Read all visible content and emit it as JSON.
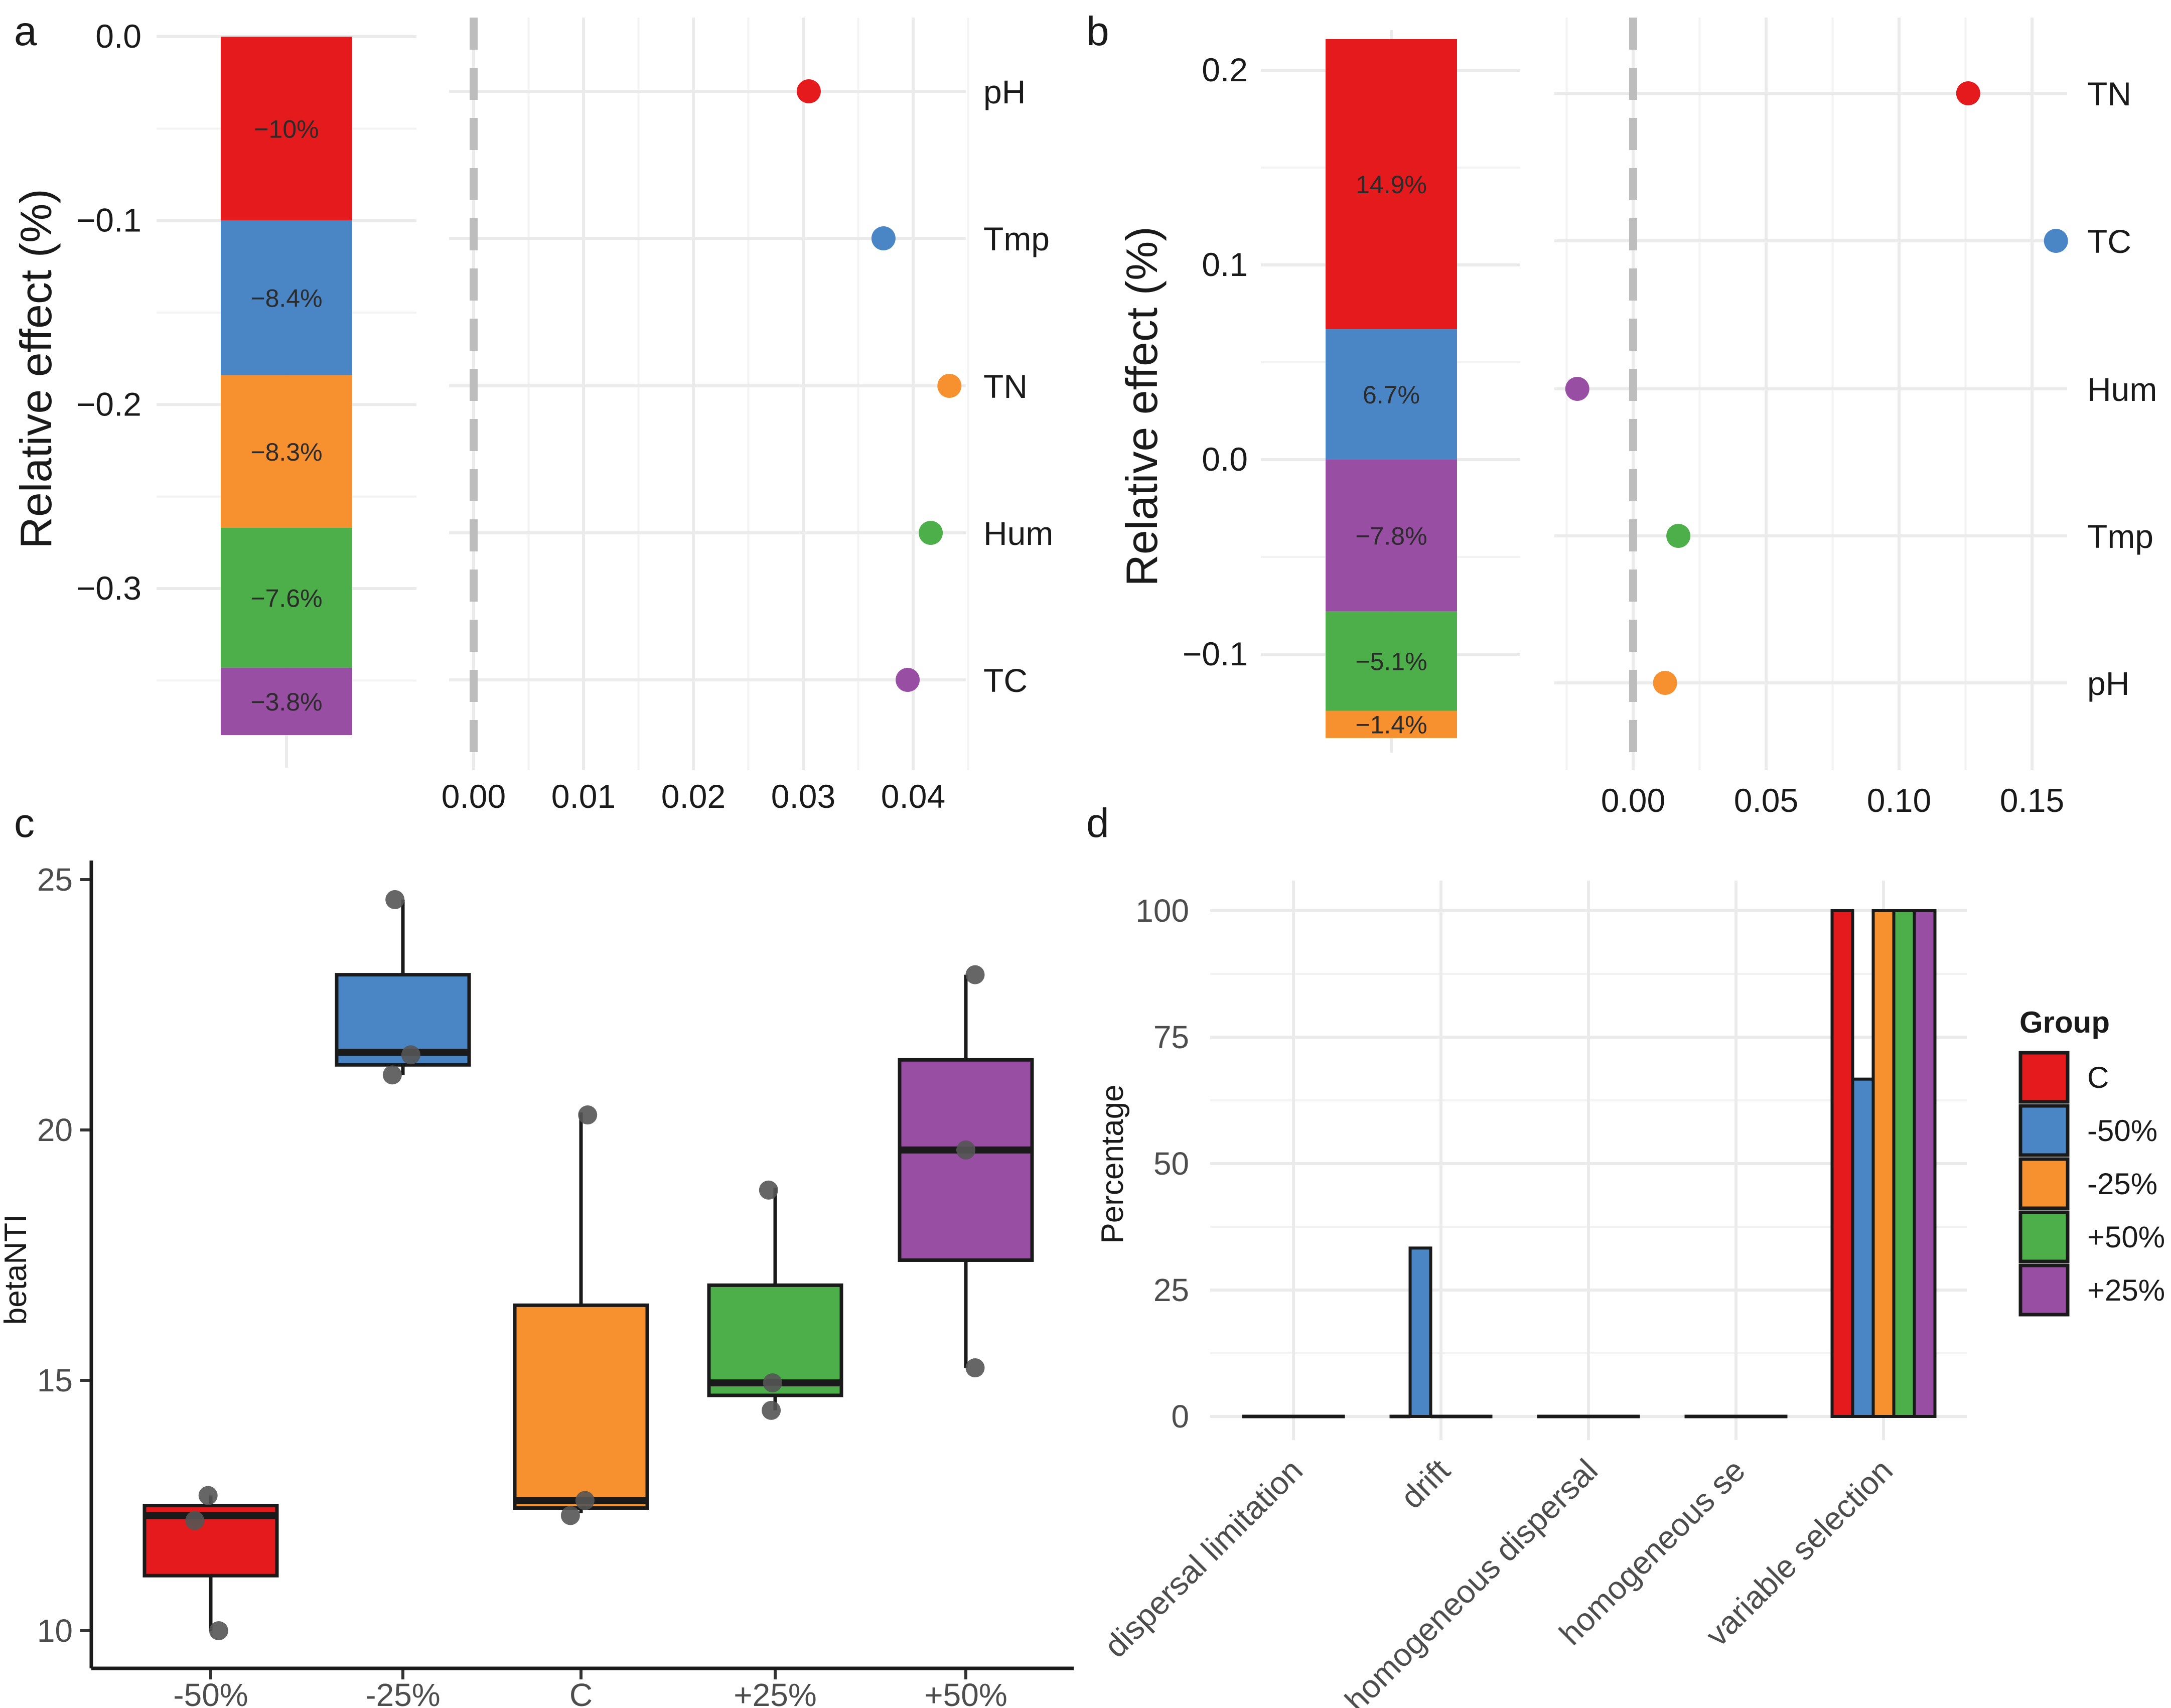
{
  "panel_labels": {
    "a": "a",
    "b": "b",
    "c": "c",
    "d": "d"
  },
  "colors": {
    "red": "#e41a1c",
    "blue": "#4a86c5",
    "orange": "#f7902f",
    "green": "#4daf4a",
    "purple": "#984ea3",
    "grid": "#ebebeb",
    "dashed": "#bdbdbd",
    "point": "#555555"
  },
  "chart_data": [
    {
      "id": "a-stack",
      "type": "bar",
      "stacked": true,
      "ylabel": "Relative effect (%)",
      "ylim": [
        -0.38,
        0.0
      ],
      "yticks": [
        0.0,
        -0.1,
        -0.2,
        -0.3
      ],
      "ytick_labels": [
        "0.0",
        "−0.1",
        "−0.2",
        "−0.3"
      ],
      "segments": [
        {
          "name": "pH",
          "value": -0.1,
          "label": "−10%",
          "color": "#e41a1c"
        },
        {
          "name": "Tmp",
          "value": -0.084,
          "label": "−8.4%",
          "color": "#4a86c5"
        },
        {
          "name": "TN",
          "value": -0.083,
          "label": "−8.3%",
          "color": "#f7902f"
        },
        {
          "name": "Hum",
          "value": -0.076,
          "label": "−7.6%",
          "color": "#4daf4a"
        },
        {
          "name": "TC",
          "value": -0.038,
          "label": "−3.8%",
          "color": "#984ea3"
        }
      ]
    },
    {
      "id": "a-dots",
      "type": "scatter",
      "xlim": [
        0.0,
        0.045
      ],
      "xticks": [
        0.0,
        0.01,
        0.02,
        0.03,
        0.04
      ],
      "xtick_labels": [
        "0.00",
        "0.01",
        "0.02",
        "0.03",
        "0.04"
      ],
      "categories": [
        "pH",
        "Tmp",
        "TN",
        "Hum",
        "TC"
      ],
      "values": [
        0.0305,
        0.0373,
        0.0433,
        0.0416,
        0.0395
      ],
      "colors": [
        "#e41a1c",
        "#4a86c5",
        "#f7902f",
        "#4daf4a",
        "#984ea3"
      ],
      "reference_line": 0.0
    },
    {
      "id": "b-stack",
      "type": "bar",
      "stacked": true,
      "ylabel": "Relative effect (%)",
      "ylim": [
        -0.145,
        0.215
      ],
      "yticks": [
        0.2,
        0.1,
        0.0,
        -0.1
      ],
      "ytick_labels": [
        "0.2",
        "0.1",
        "0.0",
        "−0.1"
      ],
      "segments": [
        {
          "name": "TN",
          "start": 0.067,
          "end": 0.216,
          "label": "14.9%",
          "color": "#e41a1c"
        },
        {
          "name": "TC",
          "start": 0.0,
          "end": 0.067,
          "label": "6.7%",
          "color": "#4a86c5"
        },
        {
          "name": "Hum",
          "start": -0.078,
          "end": 0.0,
          "label": "−7.8%",
          "color": "#984ea3"
        },
        {
          "name": "Tmp",
          "start": -0.129,
          "end": -0.078,
          "label": "−5.1%",
          "color": "#4daf4a"
        },
        {
          "name": "pH",
          "start": -0.143,
          "end": -0.129,
          "label": "−1.4%",
          "color": "#f7902f"
        }
      ]
    },
    {
      "id": "b-dots",
      "type": "scatter",
      "xlim": [
        -0.03,
        0.165
      ],
      "xticks": [
        0.0,
        0.05,
        0.1,
        0.15
      ],
      "xtick_labels": [
        "0.00",
        "0.05",
        "0.10",
        "0.15"
      ],
      "categories": [
        "TN",
        "TC",
        "Hum",
        "Tmp",
        "pH"
      ],
      "values": [
        0.126,
        0.159,
        -0.021,
        0.017,
        0.012
      ],
      "colors": [
        "#e41a1c",
        "#4a86c5",
        "#984ea3",
        "#4daf4a",
        "#f7902f"
      ],
      "reference_line": 0.0
    },
    {
      "id": "c-box",
      "type": "box",
      "ylabel": "betaNTI",
      "ylim": [
        9.1,
        25.5
      ],
      "yticks": [
        10,
        15,
        20,
        25
      ],
      "ytick_labels": [
        "10",
        "15",
        "20",
        "25"
      ],
      "categories": [
        "-50%",
        "-25%",
        "C",
        "+25%",
        "+50%"
      ],
      "colors": [
        "#e41a1c",
        "#4a86c5",
        "#f7902f",
        "#4daf4a",
        "#984ea3"
      ],
      "boxes": [
        {
          "min": 10.0,
          "q1": 11.1,
          "median": 12.3,
          "q3": 12.5,
          "max": 12.7
        },
        {
          "min": 21.1,
          "q1": 21.3,
          "median": 21.55,
          "q3": 23.1,
          "max": 24.6
        },
        {
          "min": 12.35,
          "q1": 12.45,
          "median": 12.6,
          "q3": 16.5,
          "max": 20.35
        },
        {
          "min": 14.4,
          "q1": 14.7,
          "median": 14.95,
          "q3": 16.9,
          "max": 18.85
        },
        {
          "min": 15.25,
          "q1": 17.4,
          "median": 19.6,
          "q3": 21.4,
          "max": 23.1
        }
      ],
      "points": [
        [
          12.7,
          12.2,
          10.0
        ],
        [
          24.6,
          21.5,
          21.1
        ],
        [
          20.3,
          12.6,
          12.3
        ],
        [
          18.8,
          14.95,
          14.4
        ],
        [
          23.1,
          19.6,
          15.25
        ]
      ],
      "jitter": [
        [
          -0.02,
          -0.12,
          0.06
        ],
        [
          -0.06,
          0.06,
          -0.08
        ],
        [
          0.05,
          0.03,
          -0.08
        ],
        [
          -0.05,
          -0.02,
          -0.03
        ],
        [
          0.07,
          0.0,
          0.07
        ]
      ]
    },
    {
      "id": "d-bars",
      "type": "bar",
      "grouped": true,
      "ylabel": "Percentage",
      "ylim": [
        0,
        100
      ],
      "yticks": [
        0,
        25,
        50,
        75,
        100
      ],
      "ytick_labels": [
        "0",
        "25",
        "50",
        "75",
        "100"
      ],
      "categories": [
        "dispersal limitation",
        "drift",
        "homogeneous dispersal",
        "homogeneous se",
        "variable selection"
      ],
      "legend_title": "Group",
      "legend_position": "right",
      "series": [
        {
          "name": "C",
          "color": "#e41a1c",
          "values": [
            0,
            0,
            0,
            0,
            100
          ]
        },
        {
          "name": "-50%",
          "color": "#4a86c5",
          "values": [
            0,
            33.3,
            0,
            0,
            66.7
          ]
        },
        {
          "name": "-25%",
          "color": "#f7902f",
          "values": [
            0,
            0,
            0,
            0,
            100
          ]
        },
        {
          "name": "+50%",
          "color": "#4daf4a",
          "values": [
            0,
            0,
            0,
            0,
            100
          ]
        },
        {
          "name": "+25%",
          "color": "#984ea3",
          "values": [
            0,
            0,
            0,
            0,
            100
          ]
        }
      ]
    }
  ]
}
